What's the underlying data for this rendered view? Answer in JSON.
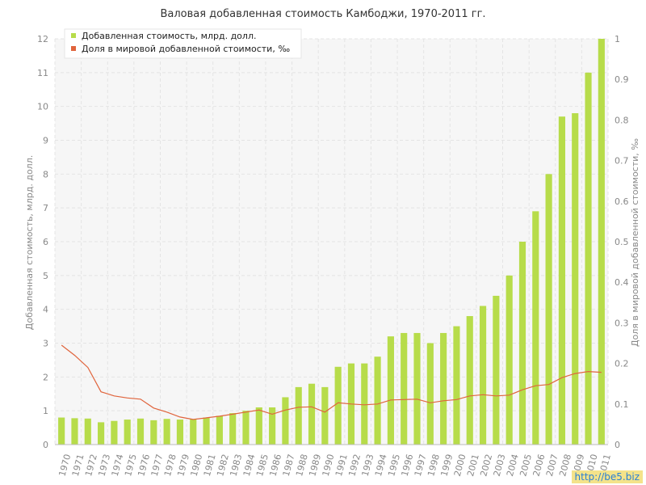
{
  "colors": {
    "bar": "#b7dc4a",
    "line": "#e0643c",
    "grid": "#e4e4e4",
    "axis_text": "#888888",
    "plot_bg": "#f6f6f6"
  },
  "watermark": "http://be5.biz",
  "chart_data": {
    "type": "bar",
    "title": "Валовая добавленная стоимость Камбоджи, 1970-2011 гг.",
    "ylabel": "Добавленная стоимость, млрд. долл.",
    "y2label": "Доля в мировой добавленной стоимости, ‰",
    "ylim": [
      0,
      12
    ],
    "y2lim": [
      0,
      1
    ],
    "y_ticks": [
      "0",
      "1",
      "2",
      "3",
      "4",
      "5",
      "6",
      "7",
      "8",
      "9",
      "10",
      "11",
      "12"
    ],
    "y2_ticks": [
      "0",
      "0.1",
      "0.2",
      "0.3",
      "0.4",
      "0.5",
      "0.6",
      "0.7",
      "0.8",
      "0.9",
      "1"
    ],
    "grid": true,
    "legend_position": "top-left",
    "categories": [
      "1970",
      "1971",
      "1972",
      "1973",
      "1974",
      "1975",
      "1976",
      "1977",
      "1978",
      "1979",
      "1980",
      "1981",
      "1982",
      "1983",
      "1984",
      "1985",
      "1986",
      "1987",
      "1988",
      "1989",
      "1990",
      "1991",
      "1992",
      "1993",
      "1994",
      "1995",
      "1996",
      "1997",
      "1998",
      "1999",
      "2000",
      "2001",
      "2002",
      "2003",
      "2004",
      "2005",
      "2006",
      "2007",
      "2008",
      "2009",
      "2010",
      "2011"
    ],
    "series": [
      {
        "name": "Добавленная стоимость, млрд. долл.",
        "kind": "bar",
        "axis": "left",
        "values": [
          0.8,
          0.78,
          0.77,
          0.66,
          0.7,
          0.74,
          0.77,
          0.72,
          0.76,
          0.74,
          0.75,
          0.8,
          0.85,
          0.93,
          1.0,
          1.1,
          1.1,
          1.4,
          1.7,
          1.8,
          1.7,
          2.3,
          2.4,
          2.4,
          2.6,
          3.2,
          3.3,
          3.3,
          3.0,
          3.3,
          3.5,
          3.8,
          4.1,
          4.4,
          5.0,
          6.0,
          6.9,
          8.0,
          9.7,
          9.8,
          11.0,
          12.0
        ]
      },
      {
        "name": "Доля в мировой добавленной стоимости, ‰",
        "kind": "line",
        "axis": "right",
        "values": [
          0.245,
          0.22,
          0.19,
          0.13,
          0.12,
          0.115,
          0.112,
          0.09,
          0.08,
          0.068,
          0.062,
          0.066,
          0.07,
          0.075,
          0.08,
          0.085,
          0.075,
          0.085,
          0.092,
          0.093,
          0.08,
          0.103,
          0.1,
          0.098,
          0.1,
          0.11,
          0.111,
          0.112,
          0.103,
          0.108,
          0.111,
          0.12,
          0.123,
          0.12,
          0.122,
          0.135,
          0.145,
          0.148,
          0.165,
          0.175,
          0.18,
          0.178
        ]
      }
    ]
  }
}
